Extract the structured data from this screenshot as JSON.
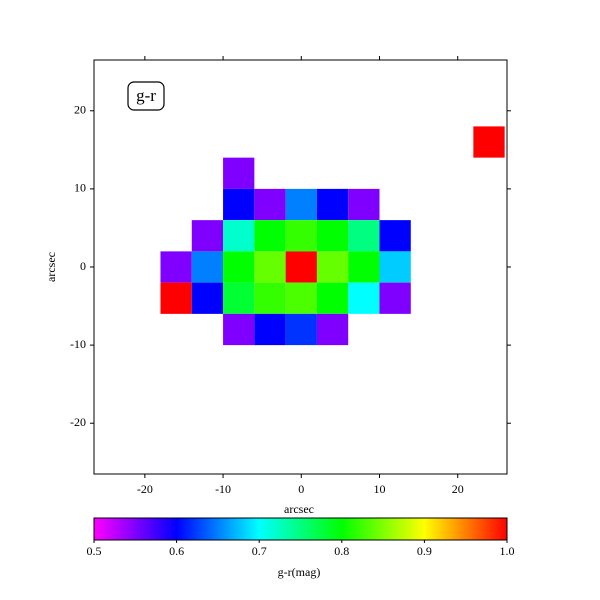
{
  "chart_data": {
    "type": "heatmap",
    "label": "g-r",
    "xlabel": "arcsec",
    "ylabel": "arcsec",
    "xlim": [
      -26.5,
      26.3
    ],
    "ylim": [
      -26.5,
      26.5
    ],
    "xticks": [
      -20,
      -10,
      0,
      10,
      20
    ],
    "yticks": [
      -20,
      -10,
      0,
      10,
      20
    ],
    "x": [
      -24,
      -20,
      -16,
      -12,
      -8,
      -4,
      0,
      4,
      8,
      12,
      16,
      20,
      24
    ],
    "y": [
      24,
      20,
      16,
      12,
      8,
      4,
      0,
      -4,
      -8,
      -12,
      -16,
      -20,
      -24
    ],
    "z": [
      [
        null,
        null,
        null,
        null,
        null,
        null,
        null,
        null,
        null,
        null,
        null,
        null,
        null
      ],
      [
        null,
        null,
        null,
        null,
        null,
        null,
        null,
        null,
        null,
        null,
        null,
        null,
        null
      ],
      [
        null,
        null,
        null,
        null,
        null,
        null,
        null,
        null,
        null,
        null,
        null,
        null,
        1.0
      ],
      [
        null,
        null,
        null,
        null,
        0.55,
        null,
        null,
        null,
        null,
        null,
        null,
        null,
        null
      ],
      [
        null,
        null,
        null,
        null,
        0.6,
        0.55,
        0.65,
        0.6,
        0.55,
        null,
        null,
        null,
        null
      ],
      [
        null,
        null,
        null,
        0.55,
        0.72,
        0.8,
        0.82,
        0.8,
        0.75,
        0.6,
        null,
        null,
        null
      ],
      [
        null,
        null,
        0.55,
        0.65,
        0.8,
        0.84,
        1.0,
        0.84,
        0.8,
        0.68,
        null,
        null,
        null
      ],
      [
        null,
        null,
        1.0,
        0.6,
        0.78,
        0.82,
        0.83,
        0.8,
        0.7,
        0.55,
        null,
        null,
        null
      ],
      [
        null,
        null,
        null,
        null,
        0.55,
        0.6,
        0.62,
        0.55,
        null,
        null,
        null,
        null,
        null
      ],
      [
        null,
        null,
        null,
        null,
        null,
        null,
        null,
        null,
        null,
        null,
        null,
        null,
        null
      ],
      [
        null,
        null,
        null,
        null,
        null,
        null,
        null,
        null,
        null,
        null,
        null,
        null,
        null
      ],
      [
        null,
        null,
        null,
        null,
        null,
        null,
        null,
        null,
        null,
        null,
        null,
        null,
        null
      ],
      [
        null,
        null,
        null,
        null,
        null,
        null,
        null,
        null,
        null,
        null,
        null,
        null,
        null
      ]
    ],
    "colormap": [
      "#ff00ff",
      "#0000ff",
      "#00ffff",
      "#00ff00",
      "#ffff00",
      "#ff0000"
    ],
    "clim": [
      0.5,
      1.0
    ],
    "cticks": [
      0.5,
      0.6,
      0.7,
      0.8,
      0.9,
      {
        "value": 1,
        "label": "1.0"
      }
    ],
    "clabel": "g-r(mag)"
  }
}
